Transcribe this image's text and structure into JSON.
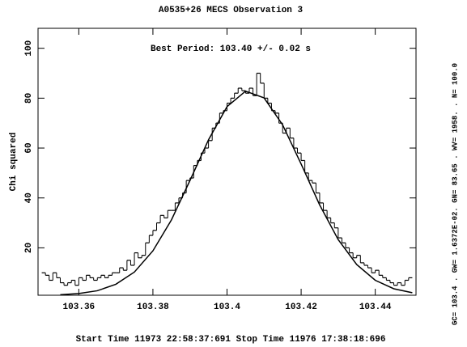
{
  "chart_data": {
    "type": "histogram",
    "title": "A0535+26 MECS Observation 3",
    "annotation": "Best Period:  103.40 +/- 0.02 s",
    "y_label": "Chi squared",
    "footer": "Start Time 11973 22:58:37:691    Stop Time 11976 17:38:18:696",
    "side_note": "GC=  103.4    . GW= 1.6372E-02. GN=  83.65    . WV=  1958.    . N=  100.0",
    "color": "#000000",
    "bins": [
      103.35,
      103.351,
      103.352,
      103.353,
      103.354,
      103.355,
      103.356,
      103.357,
      103.358,
      103.359,
      103.36,
      103.361,
      103.362,
      103.363,
      103.364,
      103.365,
      103.366,
      103.367,
      103.368,
      103.369,
      103.37,
      103.371,
      103.372,
      103.373,
      103.374,
      103.375,
      103.376,
      103.377,
      103.378,
      103.379,
      103.38,
      103.381,
      103.382,
      103.383,
      103.384,
      103.385,
      103.386,
      103.387,
      103.388,
      103.389,
      103.39,
      103.391,
      103.392,
      103.393,
      103.394,
      103.395,
      103.396,
      103.397,
      103.398,
      103.399,
      103.4,
      103.401,
      103.402,
      103.403,
      103.404,
      103.405,
      103.406,
      103.407,
      103.408,
      103.409,
      103.41,
      103.411,
      103.412,
      103.413,
      103.414,
      103.415,
      103.416,
      103.417,
      103.418,
      103.419,
      103.42,
      103.421,
      103.422,
      103.423,
      103.424,
      103.425,
      103.426,
      103.427,
      103.428,
      103.429,
      103.43,
      103.431,
      103.432,
      103.433,
      103.434,
      103.435,
      103.436,
      103.437,
      103.438,
      103.439,
      103.44,
      103.441,
      103.442,
      103.443,
      103.444,
      103.445,
      103.446,
      103.447,
      103.448,
      103.449,
      103.45
    ],
    "values": [
      10,
      9,
      7,
      10,
      8,
      6,
      5,
      6,
      7,
      5,
      8,
      7,
      9,
      8,
      7,
      8,
      9,
      8,
      9,
      10,
      10,
      12,
      11,
      15,
      13,
      18,
      16,
      17,
      22,
      25,
      27,
      30,
      33,
      32,
      35,
      35,
      38,
      40,
      42,
      47,
      48,
      53,
      55,
      58,
      60,
      63,
      68,
      70,
      74,
      75,
      78,
      80,
      82,
      84,
      83,
      82,
      84,
      81,
      90,
      86,
      80,
      78,
      75,
      74,
      70,
      66,
      68,
      64,
      60,
      58,
      55,
      50,
      47,
      46,
      42,
      38,
      35,
      32,
      30,
      28,
      24,
      22,
      20,
      18,
      16,
      17,
      14,
      13,
      12,
      10,
      11,
      9,
      8,
      7,
      6,
      5,
      6,
      5,
      7,
      8
    ],
    "fit": {
      "x": [
        103.355,
        103.36,
        103.365,
        103.37,
        103.375,
        103.38,
        103.385,
        103.39,
        103.395,
        103.4,
        103.405,
        103.41,
        103.415,
        103.42,
        103.425,
        103.43,
        103.435,
        103.44,
        103.445,
        103.45
      ],
      "values": [
        1.2,
        1.7,
        2.8,
        5.4,
        10.3,
        18.8,
        31.2,
        47,
        63.3,
        76.6,
        82.8,
        80.1,
        69.3,
        53.6,
        37.2,
        23.3,
        13.3,
        7.0,
        3.6,
        2.0
      ],
      "color": "#000000"
    },
    "xlim": [
      103.349,
      103.451
    ],
    "ylim": [
      1,
      108
    ],
    "xticks": [
      103.36,
      103.38,
      103.4,
      103.42,
      103.44
    ],
    "yticks": [
      20,
      40,
      60,
      80,
      100
    ]
  }
}
